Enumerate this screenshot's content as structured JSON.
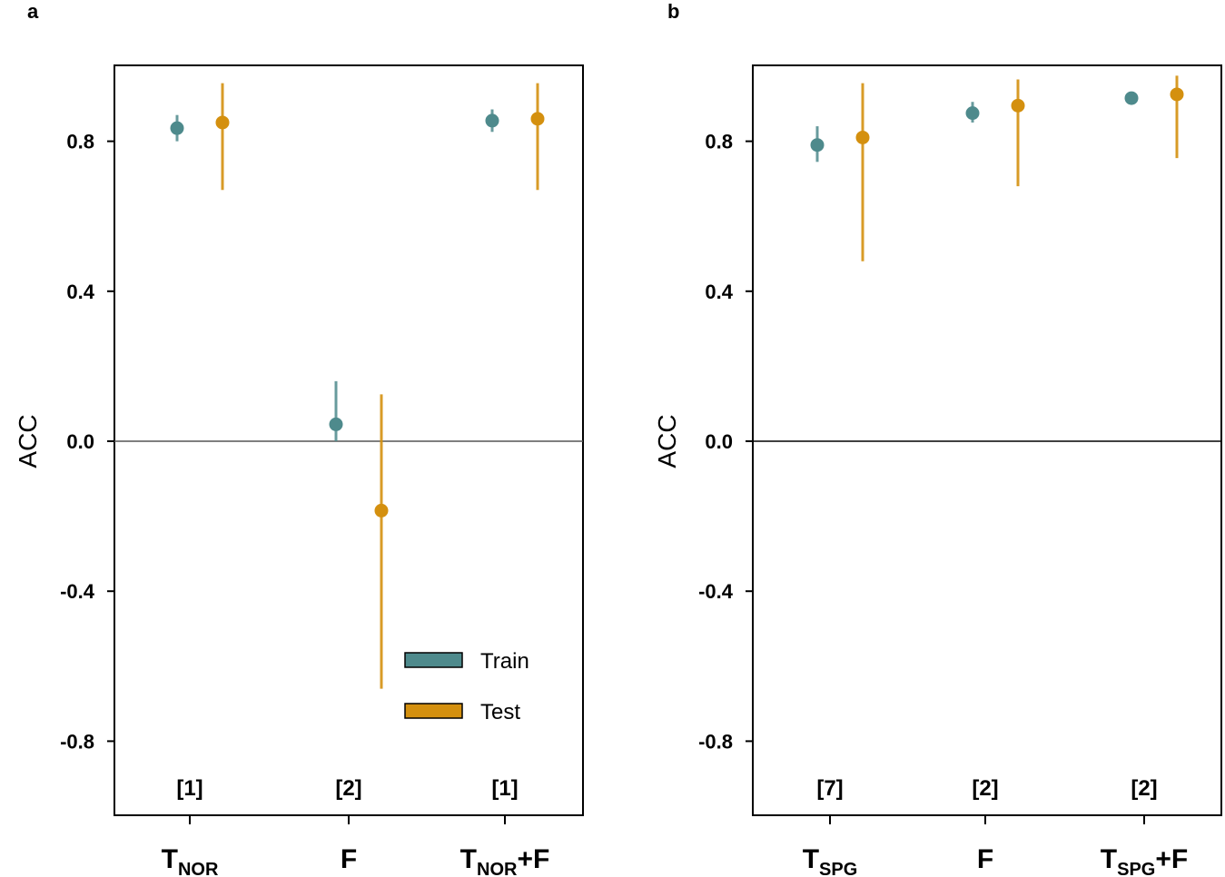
{
  "colors": {
    "train": "#4e8a8c",
    "test": "#d4900f",
    "axis": "#000000",
    "zero_line": "#555555"
  },
  "chart_data": [
    {
      "type": "scatter",
      "panel_label": "a",
      "ylabel": "ACC",
      "ylim": [
        -1.0,
        1.0
      ],
      "yticks": [
        -0.8,
        -0.4,
        0.0,
        0.4,
        0.8
      ],
      "ytick_labels": [
        "-0.8",
        "-0.4",
        "0.0",
        "0.4",
        "0.8"
      ],
      "categories": [
        {
          "main": "T",
          "sub": "NOR",
          "suffix": "",
          "count": "[1]"
        },
        {
          "main": "F",
          "sub": "",
          "suffix": "",
          "count": "[2]"
        },
        {
          "main": "T",
          "sub": "NOR",
          "suffix": "+F",
          "count": "[1]"
        }
      ],
      "series": [
        {
          "name": "Train",
          "values": [
            0.835,
            0.045,
            0.855
          ],
          "lower": [
            0.8,
            0.0,
            0.825
          ],
          "upper": [
            0.87,
            0.16,
            0.885
          ]
        },
        {
          "name": "Test",
          "values": [
            0.85,
            -0.185,
            0.86
          ],
          "lower": [
            0.67,
            -0.66,
            0.67
          ],
          "upper": [
            0.955,
            0.125,
            0.955
          ]
        }
      ],
      "legend": {
        "entries": [
          "Train",
          "Test"
        ],
        "placement": "bottom-right"
      }
    },
    {
      "type": "scatter",
      "panel_label": "b",
      "ylabel": "ACC",
      "ylim": [
        -1.0,
        1.0
      ],
      "yticks": [
        -0.8,
        -0.4,
        0.0,
        0.4,
        0.8
      ],
      "ytick_labels": [
        "-0.8",
        "-0.4",
        "0.0",
        "0.4",
        "0.8"
      ],
      "categories": [
        {
          "main": "T",
          "sub": "SPG",
          "suffix": "",
          "count": "[7]"
        },
        {
          "main": "F",
          "sub": "",
          "suffix": "",
          "count": "[2]"
        },
        {
          "main": "T",
          "sub": "SPG",
          "suffix": "+F",
          "count": "[2]"
        }
      ],
      "series": [
        {
          "name": "Train",
          "values": [
            0.79,
            0.875,
            0.915
          ],
          "lower": [
            0.745,
            0.85,
            0.905
          ],
          "upper": [
            0.84,
            0.905,
            0.93
          ]
        },
        {
          "name": "Test",
          "values": [
            0.81,
            0.895,
            0.925
          ],
          "lower": [
            0.48,
            0.68,
            0.755
          ],
          "upper": [
            0.955,
            0.965,
            0.975
          ]
        }
      ]
    }
  ]
}
